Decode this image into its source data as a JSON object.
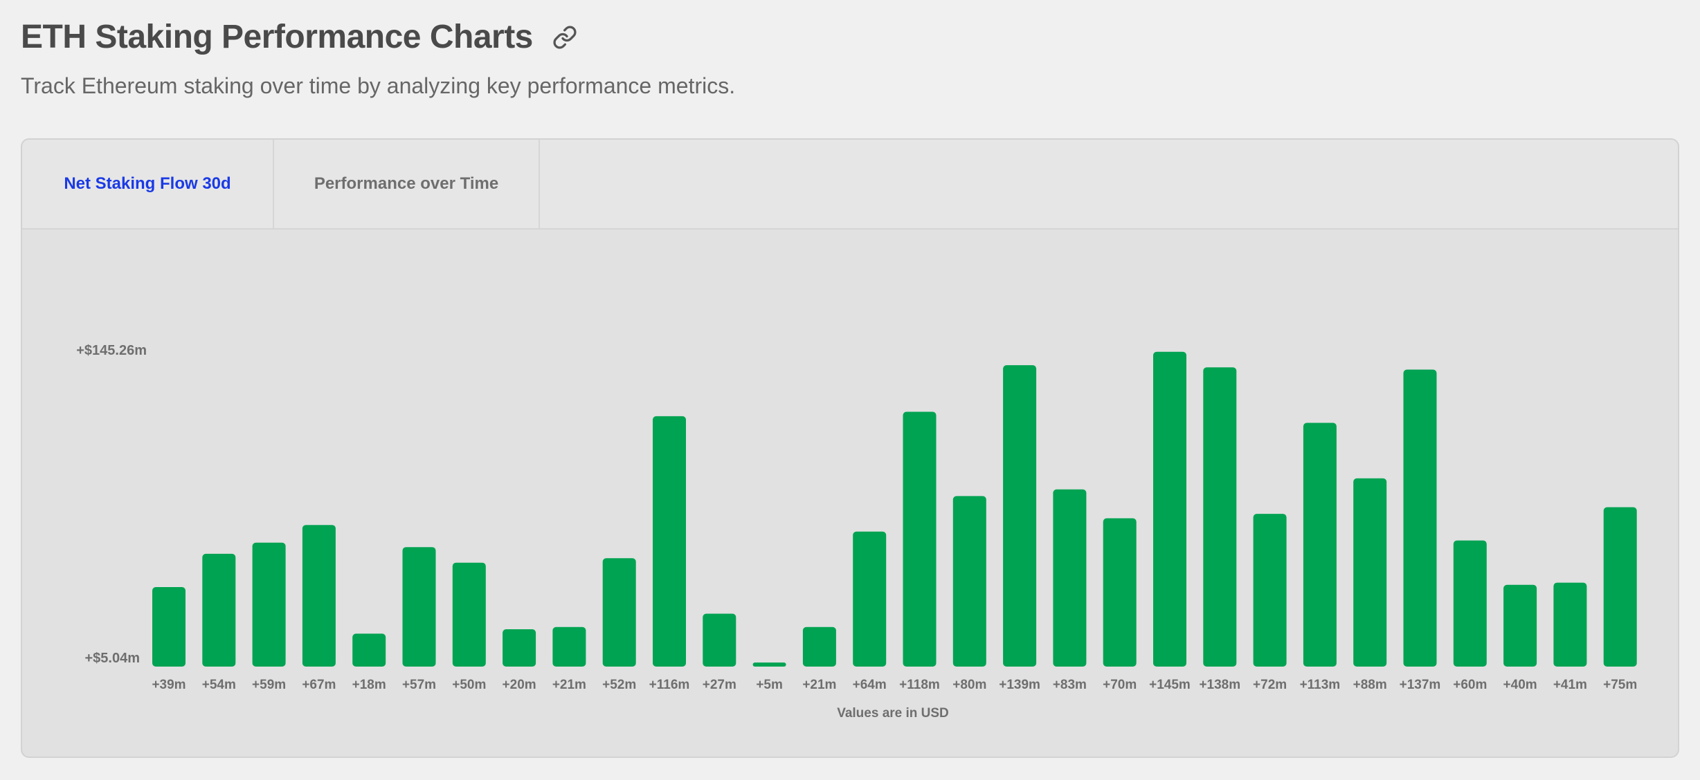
{
  "header": {
    "title": "ETH Staking Performance Charts",
    "link_icon": "link-icon",
    "subtitle": "Track Ethereum staking over time by analyzing key performance metrics."
  },
  "tabs": [
    {
      "label": "Net Staking Flow 30d",
      "active": true
    },
    {
      "label": "Performance over Time",
      "active": false
    }
  ],
  "colors": {
    "bar": "#00a352",
    "active_tab": "#1a3ae6",
    "text": "#4a4a4a"
  },
  "chart_data": {
    "type": "bar",
    "title": "",
    "xlabel": "Values are in USD",
    "ylabel": "",
    "y_tick_labels": [
      "+$5.04m",
      "+$145.26m"
    ],
    "ylim": [
      5.04,
      145.26
    ],
    "unit": "USD millions",
    "grid": false,
    "legend": "none",
    "categories": [
      "+39m",
      "+54m",
      "+59m",
      "+67m",
      "+18m",
      "+57m",
      "+50m",
      "+20m",
      "+21m",
      "+52m",
      "+116m",
      "+27m",
      "+5m",
      "+21m",
      "+64m",
      "+118m",
      "+80m",
      "+139m",
      "+83m",
      "+70m",
      "+145m",
      "+138m",
      "+72m",
      "+113m",
      "+88m",
      "+137m",
      "+60m",
      "+40m",
      "+41m",
      "+75m"
    ],
    "values": [
      39,
      54,
      59,
      67,
      18,
      57,
      50,
      20,
      21,
      52,
      116,
      27,
      5,
      21,
      64,
      118,
      80,
      139,
      83,
      70,
      145,
      138,
      72,
      113,
      88,
      137,
      60,
      40,
      41,
      75
    ]
  }
}
